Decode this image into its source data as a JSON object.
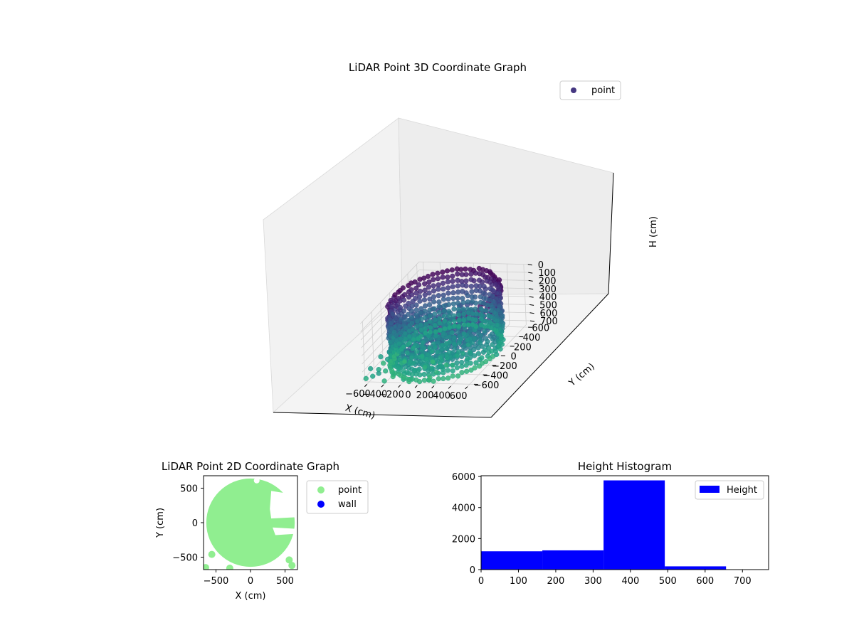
{
  "chart_data": [
    {
      "type": "scatter",
      "projection": "3d",
      "title": "LiDAR Point 3D Coordinate Graph",
      "xlabel": "X (cm)",
      "ylabel": "Y (cm)",
      "zlabel": "H (cm)",
      "x_ticks": [
        -600,
        -400,
        -200,
        0,
        200,
        400,
        600
      ],
      "y_ticks": [
        -600,
        -400,
        -200,
        0,
        200,
        400,
        600
      ],
      "z_ticks": [
        0,
        100,
        200,
        300,
        400,
        500,
        600,
        700
      ],
      "xlim": [
        -650,
        650
      ],
      "ylim": [
        -650,
        650
      ],
      "zlim": [
        0,
        750
      ],
      "z_inverted": true,
      "grid": true,
      "legend": {
        "placement": "top-right",
        "entries": [
          "point"
        ]
      },
      "series": [
        {
          "name": "point",
          "colormap": "viridis",
          "legend_color": "#453781",
          "description_shape": "ring wall radius ~620 cm, heights 0-750 cm"
        }
      ]
    },
    {
      "type": "scatter",
      "title": "LiDAR Point 2D Coordinate Graph",
      "xlabel": "X (cm)",
      "ylabel": "Y (cm)",
      "x_ticks": [
        -500,
        0,
        500
      ],
      "y_ticks": [
        -500,
        0,
        500
      ],
      "xlim": [
        -680,
        680
      ],
      "ylim": [
        -680,
        680
      ],
      "legend": {
        "placement": "outside-right",
        "entries": [
          "point",
          "wall"
        ]
      },
      "series": [
        {
          "name": "point",
          "color": "#90ee90"
        },
        {
          "name": "wall",
          "color": "#0000ff"
        }
      ]
    },
    {
      "type": "bar",
      "subtype": "histogram",
      "title": "Height Histogram",
      "x_ticks": [
        0,
        100,
        200,
        300,
        400,
        500,
        600,
        700
      ],
      "y_ticks": [
        0,
        2000,
        4000,
        6000
      ],
      "xlim": [
        0,
        770
      ],
      "ylim": [
        0,
        6050
      ],
      "bin_edges": [
        0,
        164,
        328,
        492,
        656
      ],
      "values": [
        1180,
        1240,
        5750,
        210
      ],
      "legend": {
        "placement": "top-right",
        "entries": [
          "Height"
        ]
      },
      "series": [
        {
          "name": "Height",
          "color": "#0000ff",
          "values": [
            1180,
            1240,
            5750,
            210
          ]
        }
      ]
    }
  ]
}
